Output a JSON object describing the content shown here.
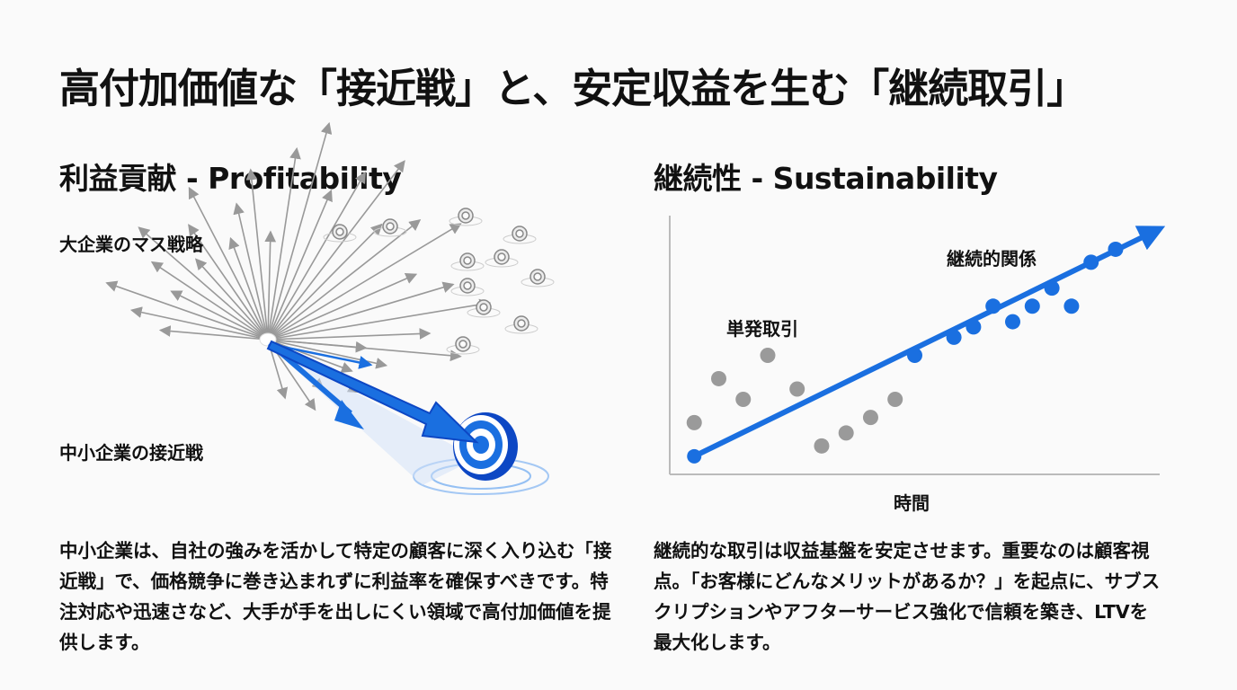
{
  "title": "高付加価値な「接近戦」と、安定収益を生む「継続取引」",
  "left": {
    "heading": "利益貢献 - Profitability",
    "label_mass": "大企業のマス戦略",
    "label_close": "中小企業の接近戦",
    "body": "中小企業は、自社の強みを活かして特定の顧客に深く入り込む「接近戦」で、価格競争に巻き込まれずに利益率を確保すべきです。特注対応や迅速さなど、大手が手を出しにくい領域で高付加価値を提供します。"
  },
  "right": {
    "heading": "継続性 - Sustainability",
    "body": "継続的な取引は収益基盤を安定させます。重要なのは顧客視点。「お客様にどんなメリットがあるか？」を起点に、サブスクリプションやアフターサービス強化で信頼を築き、LTVを最大化します。"
  },
  "colors": {
    "blue": "#1a6fe0",
    "gray": "#9a9a9a",
    "dark_blue": "#0d47c4"
  },
  "chart_data": {
    "type": "scatter",
    "xlabel": "時間",
    "ylabel": "",
    "xlim": [
      0,
      100
    ],
    "ylim": [
      0,
      100
    ],
    "annotations": [
      "単発取引",
      "継続的関係"
    ],
    "series": [
      {
        "name": "単発取引",
        "color": "#9a9a9a",
        "points": [
          [
            5,
            20
          ],
          [
            10,
            37
          ],
          [
            15,
            29
          ],
          [
            20,
            46
          ],
          [
            26,
            33
          ],
          [
            31,
            11
          ],
          [
            36,
            16
          ],
          [
            41,
            22
          ],
          [
            46,
            29
          ]
        ]
      },
      {
        "name": "継続的関係",
        "color": "#1a6fe0",
        "points": [
          [
            50,
            46
          ],
          [
            58,
            53
          ],
          [
            62,
            57
          ],
          [
            66,
            65
          ],
          [
            70,
            59
          ],
          [
            74,
            65
          ],
          [
            78,
            72
          ],
          [
            82,
            65
          ],
          [
            86,
            82
          ],
          [
            91,
            87
          ]
        ]
      }
    ],
    "trend_line": [
      [
        5,
        7
      ],
      [
        100,
        96
      ]
    ]
  }
}
